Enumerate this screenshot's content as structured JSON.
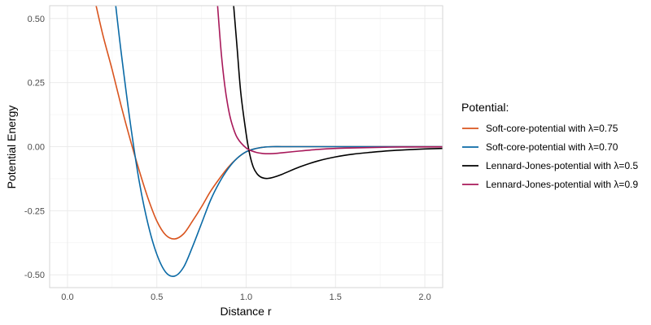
{
  "chart_data": {
    "type": "line",
    "xlabel": "Distance r",
    "ylabel": "Potential Energy",
    "xlim": [
      -0.1,
      2.1
    ],
    "ylim": [
      -0.55,
      0.55
    ],
    "x_ticks": [
      0.0,
      0.5,
      1.0,
      1.5,
      2.0
    ],
    "x_tick_labels": [
      "0.0",
      "0.5",
      "1.0",
      "1.5",
      "2.0"
    ],
    "y_ticks": [
      0.5,
      0.25,
      0.0,
      -0.25,
      -0.5
    ],
    "y_tick_labels": [
      "0.50",
      "0.25",
      "0.00",
      "-0.25",
      "-0.50"
    ],
    "grid": true,
    "legend": {
      "title": "Potential:",
      "position": "right"
    },
    "series": [
      {
        "name": "Soft-core-potential with λ=0.75",
        "color": "#d9541e",
        "x": [
          0.16,
          0.2,
          0.25,
          0.3,
          0.35,
          0.4,
          0.45,
          0.5,
          0.55,
          0.6,
          0.65,
          0.7,
          0.75,
          0.8,
          0.85,
          0.9,
          0.95,
          1.0,
          1.05,
          1.1,
          1.15,
          1.2,
          1.3,
          1.4,
          1.5,
          1.6,
          1.8,
          2.0,
          2.1
        ],
        "y": [
          0.55,
          0.43,
          0.3,
          0.16,
          0.03,
          -0.09,
          -0.2,
          -0.29,
          -0.345,
          -0.36,
          -0.34,
          -0.29,
          -0.235,
          -0.175,
          -0.125,
          -0.08,
          -0.045,
          -0.02,
          -0.008,
          -0.002,
          0.0,
          0.0,
          0.0,
          0.0,
          0.0,
          0.0,
          0.0,
          0.0,
          0.0
        ]
      },
      {
        "name": "Soft-core-potential with λ=0.70",
        "color": "#0a6aa6",
        "x": [
          0.27,
          0.3,
          0.35,
          0.4,
          0.45,
          0.5,
          0.55,
          0.6,
          0.65,
          0.7,
          0.75,
          0.8,
          0.85,
          0.9,
          0.95,
          1.0,
          1.05,
          1.1,
          1.15,
          1.2,
          1.3,
          1.4,
          1.5,
          1.6,
          1.8,
          2.0,
          2.1
        ],
        "y": [
          0.55,
          0.37,
          0.1,
          -0.13,
          -0.3,
          -0.42,
          -0.49,
          -0.505,
          -0.47,
          -0.39,
          -0.3,
          -0.21,
          -0.14,
          -0.085,
          -0.045,
          -0.02,
          -0.008,
          -0.002,
          0.0,
          0.0,
          0.0,
          0.0,
          0.0,
          0.0,
          0.0,
          0.0,
          0.0
        ]
      },
      {
        "name": "Lennard-Jones-potential with λ=0.5",
        "color": "#000000",
        "x": [
          0.93,
          0.95,
          0.97,
          1.0,
          1.02,
          1.04,
          1.06,
          1.08,
          1.1,
          1.12,
          1.15,
          1.2,
          1.3,
          1.4,
          1.5,
          1.6,
          1.7,
          1.8,
          1.9,
          2.0,
          2.1
        ],
        "y": [
          0.55,
          0.38,
          0.21,
          0.05,
          -0.03,
          -0.08,
          -0.105,
          -0.118,
          -0.123,
          -0.124,
          -0.12,
          -0.108,
          -0.079,
          -0.056,
          -0.04,
          -0.029,
          -0.022,
          -0.016,
          -0.012,
          -0.009,
          -0.007
        ]
      },
      {
        "name": "Lennard-Jones-potential with λ=0.9",
        "color": "#a8195a",
        "x": [
          0.84,
          0.86,
          0.88,
          0.9,
          0.92,
          0.95,
          1.0,
          1.05,
          1.1,
          1.15,
          1.2,
          1.3,
          1.4,
          1.5,
          1.6,
          1.8,
          2.0,
          2.1
        ],
        "y": [
          0.55,
          0.37,
          0.24,
          0.15,
          0.09,
          0.035,
          -0.005,
          -0.021,
          -0.027,
          -0.027,
          -0.024,
          -0.017,
          -0.011,
          -0.007,
          -0.005,
          -0.002,
          -0.001,
          -0.001
        ]
      }
    ]
  }
}
